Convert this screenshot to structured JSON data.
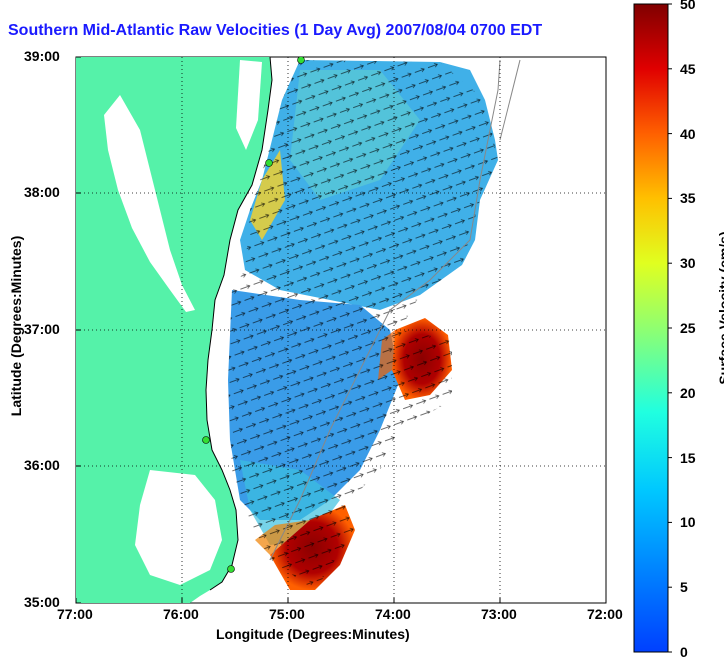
{
  "title": "Southern Mid-Atlantic Raw Velocities (1 Day Avg) 2007/08/04 0700 EDT",
  "x_axis": {
    "label": "Longitude (Degrees:Minutes)",
    "ticks": [
      "77:00",
      "76:00",
      "75:00",
      "74:00",
      "73:00",
      "72:00"
    ]
  },
  "y_axis": {
    "label": "Latitude (Degrees:Minutes)",
    "ticks": [
      "39:00",
      "38:00",
      "37:00",
      "36:00",
      "35:00"
    ]
  },
  "colorbar": {
    "label": "Surface Velocity (cm/s)",
    "ticks": [
      "50",
      "45",
      "40",
      "35",
      "30",
      "25",
      "20",
      "15",
      "10",
      "5",
      "0"
    ],
    "min": 0,
    "max": 50,
    "colormap": "jet"
  },
  "colors": {
    "land": "#55f2a9",
    "title": "#1a1aff",
    "station": "#33dd33"
  }
}
